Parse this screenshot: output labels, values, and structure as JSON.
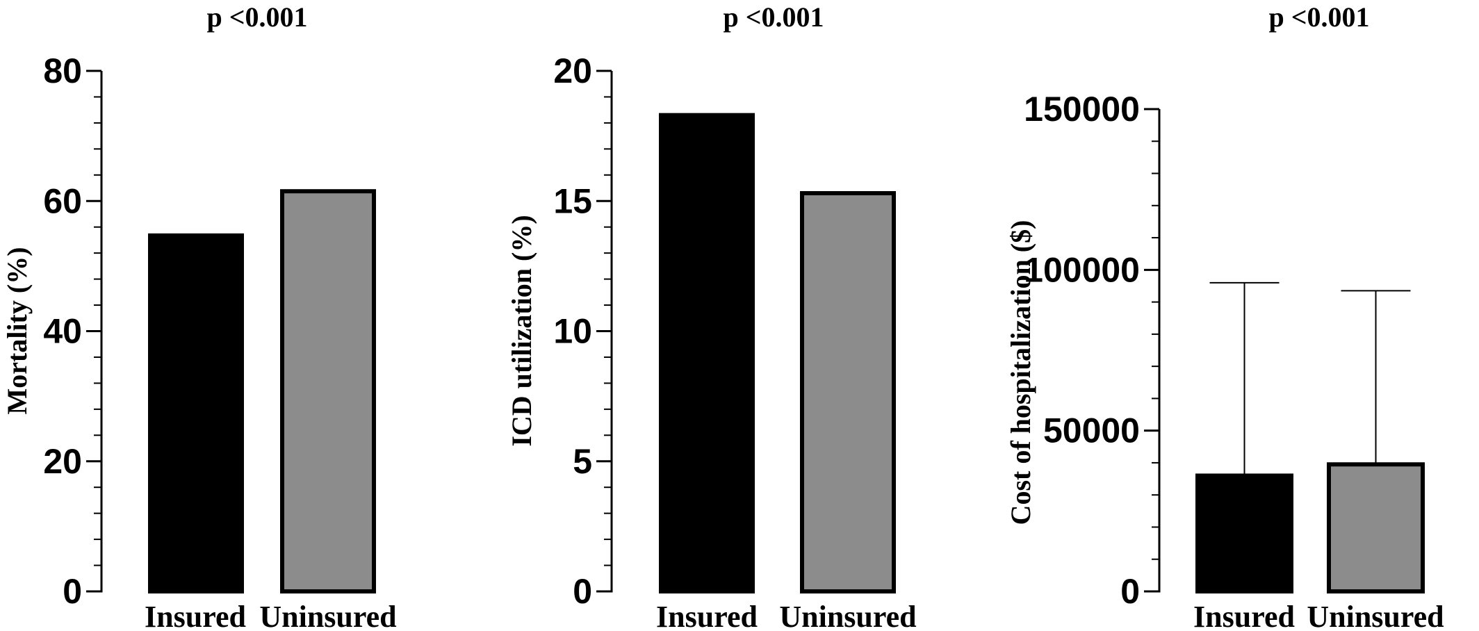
{
  "chart_data": [
    {
      "type": "bar",
      "title": "p <0.001",
      "ylabel": "Mortality (%)",
      "categories": [
        "Insured",
        "Uninsured"
      ],
      "values": [
        54.7,
        61.5
      ],
      "ylim": [
        0,
        80
      ],
      "yticks": [
        "0",
        "20",
        "40",
        "60",
        "80"
      ],
      "minor_ticks_per_interval": 5,
      "bar_colors": [
        "#000000",
        "#8c8c8c"
      ]
    },
    {
      "type": "bar",
      "title": "p <0.001",
      "ylabel": "ICD utilization (%)",
      "categories": [
        "Insured",
        "Uninsured"
      ],
      "values": [
        18.3,
        15.3
      ],
      "ylim": [
        0,
        20
      ],
      "yticks": [
        "0",
        "5",
        "10",
        "15",
        "20"
      ],
      "minor_ticks_per_interval": 5,
      "bar_colors": [
        "#000000",
        "#8c8c8c"
      ]
    },
    {
      "type": "bar",
      "title": "p <0.001",
      "ylabel": "Cost of hospitalization ($)",
      "categories": [
        "Insured",
        "Uninsured"
      ],
      "values": [
        36000,
        39500
      ],
      "error_upper": [
        96000,
        93500
      ],
      "ylim": [
        0,
        150000
      ],
      "yticks": [
        "0",
        "50000",
        "100000",
        "150000"
      ],
      "minor_ticks_per_interval": 5,
      "bar_colors": [
        "#000000",
        "#8c8c8c"
      ]
    }
  ]
}
